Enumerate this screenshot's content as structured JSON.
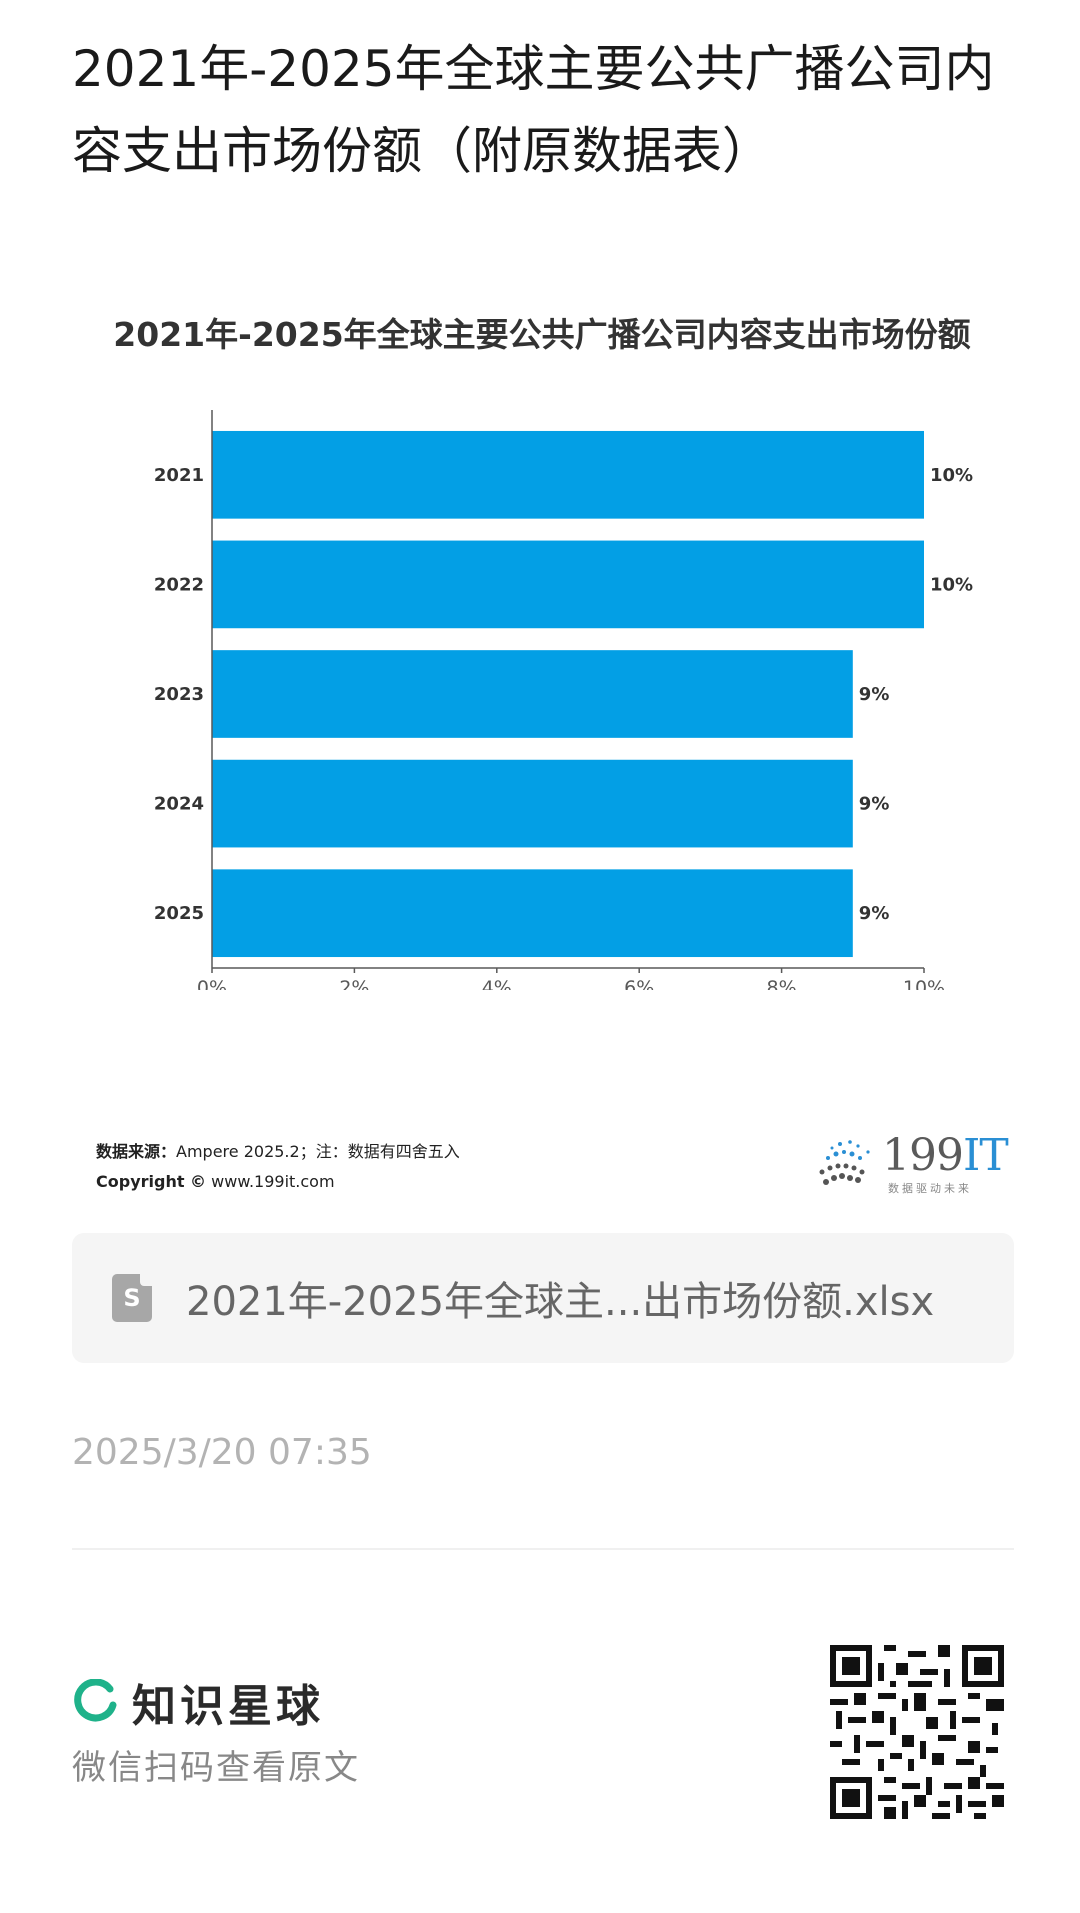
{
  "page": {
    "title": "2021年-2025年全球主要公共广播公司内容支出市场份额（附原数据表）"
  },
  "chart_data": {
    "type": "bar",
    "orientation": "horizontal",
    "title": "2021年-2025年全球主要公共广播公司内容支出市场份额",
    "categories": [
      "2021",
      "2022",
      "2023",
      "2024",
      "2025"
    ],
    "values": [
      10,
      10,
      9,
      9,
      9
    ],
    "value_labels": [
      "10%",
      "10%",
      "9%",
      "9%",
      "9%"
    ],
    "xlim": [
      0,
      10
    ],
    "xticks": [
      "0%",
      "2%",
      "4%",
      "6%",
      "8%",
      "10%"
    ],
    "grid": false,
    "bar_color": "#039fe5",
    "xlabel": "",
    "ylabel": ""
  },
  "source": {
    "label": "数据来源：",
    "text": "Ampere  2025.2；注：数据有四舍五入",
    "copyright_label": "Copyright ©",
    "copyright_text": " www.199it.com"
  },
  "brand": {
    "number": "199",
    "suffix": "IT",
    "tagline": "数据驱动未来"
  },
  "file": {
    "icon": "spreadsheet-file-icon",
    "icon_letter": "S",
    "name": "2021年-2025年全球主...出市场份额.xlsx"
  },
  "timestamp": "2025/3/20 07:35",
  "footer": {
    "app_name": "知识星球",
    "scan_hint": "微信扫码查看原文",
    "accent_color": "#1fb28a"
  }
}
